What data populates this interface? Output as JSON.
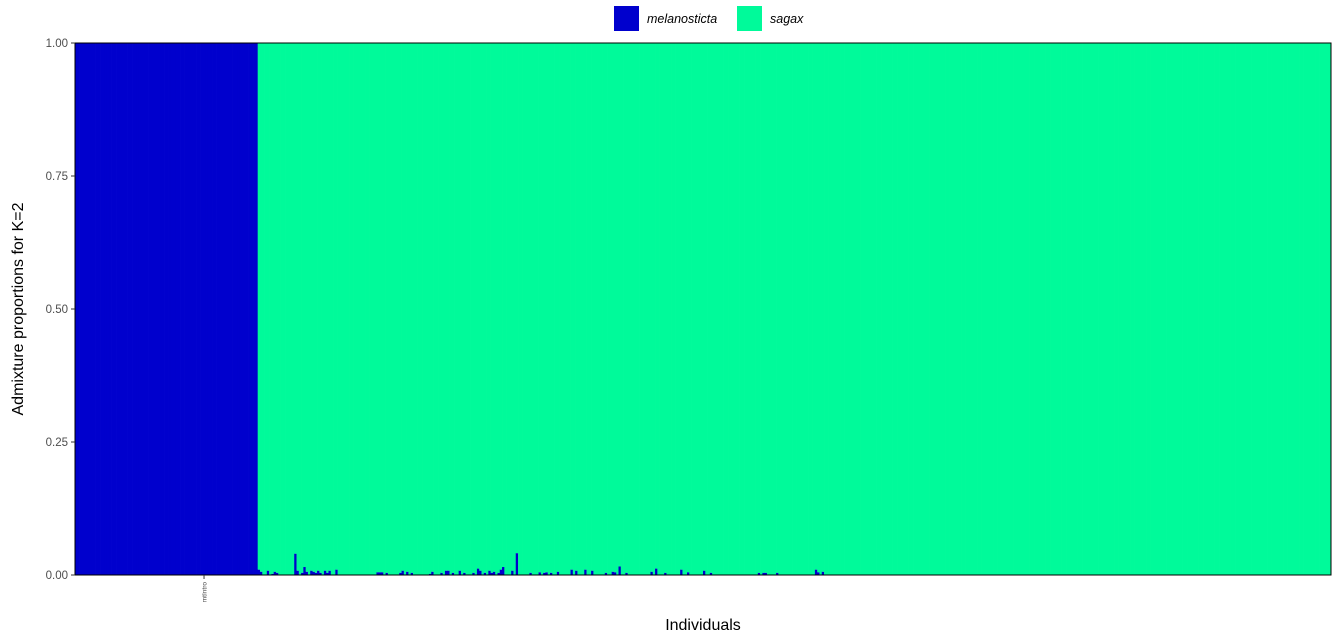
{
  "chart_data": {
    "type": "bar",
    "subtype": "stacked-proportion",
    "ylabel": "Admixture proportions for K=2",
    "xlabel": "Individuals",
    "ylim": [
      0,
      1
    ],
    "yticks": [
      "0.00",
      "0.25",
      "0.50",
      "0.75",
      "1.00"
    ],
    "x_tick_labels": [
      {
        "label": "mtIntro",
        "index": 56
      }
    ],
    "legend": {
      "position": "top",
      "entries": [
        {
          "name": "melanosticta",
          "color": "#0000CD"
        },
        {
          "name": "sagax",
          "color": "#00FA9A"
        }
      ]
    },
    "colors": {
      "melanosticta": "#0000CD",
      "sagax": "#00FA9A",
      "panel_border": "#000000"
    },
    "n_individuals": 550,
    "groups": [
      {
        "name": "melanosticta",
        "count": 80,
        "melanosticta_proportion": 1.0
      },
      {
        "name": "sagax",
        "count": 470,
        "melanosticta_proportion_default": 0.0
      }
    ],
    "melanosticta_in_sagax_group": [
      0.01,
      0.006,
      0.0,
      0.0,
      0.008,
      0.0,
      0.002,
      0.006,
      0.004,
      0.0,
      0.0,
      0.0,
      0.0,
      0.0,
      0.0,
      0.0,
      0.04,
      0.008,
      0.0,
      0.004,
      0.015,
      0.006,
      0.0,
      0.008,
      0.006,
      0.004,
      0.008,
      0.004,
      0.0,
      0.008,
      0.004,
      0.008,
      0.0,
      0.0,
      0.01,
      0.0,
      0.0,
      0.0,
      0.0,
      0.0,
      0.0,
      0.0,
      0.0,
      0.0,
      0.0,
      0.0,
      0.0,
      0.0,
      0.0,
      0.0,
      0.0,
      0.0,
      0.005,
      0.005,
      0.005,
      0.0,
      0.004,
      0.0,
      0.0,
      0.0,
      0.0,
      0.0,
      0.004,
      0.008,
      0.0,
      0.006,
      0.0,
      0.004,
      0.0,
      0.0,
      0.0,
      0.0,
      0.0,
      0.0,
      0.0,
      0.002,
      0.006,
      0.0,
      0.0,
      0.0,
      0.004,
      0.0,
      0.008,
      0.008,
      0.0,
      0.004,
      0.0,
      0.0,
      0.008,
      0.0,
      0.004,
      0.0,
      0.0,
      0.0,
      0.004,
      0.0,
      0.012,
      0.008,
      0.0,
      0.004,
      0.0,
      0.008,
      0.004,
      0.006,
      0.0,
      0.004,
      0.01,
      0.015,
      0.0,
      0.0,
      0.0,
      0.008,
      0.0,
      0.041,
      0.0,
      0.0,
      0.0,
      0.0,
      0.0,
      0.004,
      0.0,
      0.0,
      0.0,
      0.005,
      0.0,
      0.004,
      0.005,
      0.0,
      0.004,
      0.0,
      0.0,
      0.006,
      0.0,
      0.0,
      0.0,
      0.0,
      0.0,
      0.01,
      0.0,
      0.008,
      0.0,
      0.0,
      0.0,
      0.01,
      0.0,
      0.0,
      0.008,
      0.0,
      0.0,
      0.0,
      0.0,
      0.0,
      0.004,
      0.0,
      0.0,
      0.006,
      0.005,
      0.0,
      0.016,
      0.0,
      0.0,
      0.004,
      0.0,
      0.0,
      0.0,
      0.0,
      0.0,
      0.0,
      0.0,
      0.0,
      0.0,
      0.0,
      0.006,
      0.0,
      0.012,
      0.0,
      0.0,
      0.0,
      0.004,
      0.0,
      0.0,
      0.0,
      0.0,
      0.0,
      0.0,
      0.01,
      0.0,
      0.0,
      0.005,
      0.0,
      0.0,
      0.0,
      0.0,
      0.0,
      0.0,
      0.008,
      0.0,
      0.0,
      0.004,
      0.0,
      0.0,
      0.0,
      0.0,
      0.0,
      0.0,
      0.0,
      0.0,
      0.0,
      0.0,
      0.0,
      0.0,
      0.0,
      0.0,
      0.0,
      0.0,
      0.0,
      0.0,
      0.0,
      0.0,
      0.004,
      0.0,
      0.004,
      0.004,
      0.0,
      0.0,
      0.0,
      0.0,
      0.004,
      0.0,
      0.0,
      0.0,
      0.0,
      0.0,
      0.0,
      0.0,
      0.0,
      0.0,
      0.0,
      0.0,
      0.0,
      0.0,
      0.0,
      0.0,
      0.0,
      0.01,
      0.005,
      0.0,
      0.006,
      0.0,
      0.0,
      0.0,
      0.0,
      0.0,
      0.0,
      0.0,
      0.0,
      0.0,
      0.0,
      0.0,
      0.0,
      0.0,
      0.0,
      0.0,
      0.0,
      0.0,
      0.0,
      0.0,
      0.0,
      0.0,
      0.0,
      0.0,
      0.0,
      0.0,
      0.0,
      0.0,
      0.0,
      0.0,
      0.0,
      0.0,
      0.0,
      0.0,
      0.0,
      0.0,
      0.0,
      0.0,
      0.0,
      0.0,
      0.0,
      0.0,
      0.0,
      0.0,
      0.0,
      0.0,
      0.0,
      0.0,
      0.0,
      0.0,
      0.0,
      0.0,
      0.0,
      0.0,
      0.0,
      0.0,
      0.0,
      0.0,
      0.0,
      0.0,
      0.0,
      0.0,
      0.0,
      0.0,
      0.0,
      0.0,
      0.0,
      0.0,
      0.0,
      0.0,
      0.0,
      0.0,
      0.0,
      0.0,
      0.0,
      0.0,
      0.0,
      0.0,
      0.0,
      0.0,
      0.0,
      0.0,
      0.0,
      0.0,
      0.0,
      0.0,
      0.0,
      0.0,
      0.0,
      0.0,
      0.0,
      0.0,
      0.0,
      0.0,
      0.0,
      0.0,
      0.0,
      0.0,
      0.0,
      0.0,
      0.0,
      0.0,
      0.0,
      0.0,
      0.0,
      0.0,
      0.0,
      0.0,
      0.0,
      0.0,
      0.0,
      0.0,
      0.0,
      0.0,
      0.0,
      0.0,
      0.0,
      0.0,
      0.0,
      0.0,
      0.0,
      0.0,
      0.0,
      0.0,
      0.0,
      0.0,
      0.0,
      0.0,
      0.0,
      0.0,
      0.0,
      0.0,
      0.0,
      0.0,
      0.0,
      0.0,
      0.0,
      0.0,
      0.0,
      0.0,
      0.0,
      0.0,
      0.0,
      0.0,
      0.0,
      0.0,
      0.0,
      0.0,
      0.0,
      0.0,
      0.0,
      0.0,
      0.0,
      0.0,
      0.0,
      0.0,
      0.0,
      0.0,
      0.0,
      0.0,
      0.0,
      0.0,
      0.0,
      0.0,
      0.0,
      0.0,
      0.0,
      0.0,
      0.0,
      0.0,
      0.0,
      0.0,
      0.0,
      0.0,
      0.0,
      0.0,
      0.0,
      0.0,
      0.0,
      0.0,
      0.0,
      0.0,
      0.0,
      0.0,
      0.0,
      0.0,
      0.0,
      0.0,
      0.0,
      0.0,
      0.0,
      0.0,
      0.0,
      0.0,
      0.0,
      0.0,
      0.0,
      0.0,
      0.0,
      0.0,
      0.0,
      0.0,
      0.0,
      0.0,
      0.0,
      0.0,
      0.0,
      0.0,
      0.0,
      0.0,
      0.0,
      0.0,
      0.0,
      0.0,
      0.0,
      0.0,
      0.0,
      0.0,
      0.0,
      0.0,
      0.0,
      0.0,
      0.0,
      0.0,
      0.0,
      0.0,
      0.0,
      0.0,
      0.0,
      0.0,
      0.0,
      0.0,
      0.0,
      0.0,
      0.0,
      0.0,
      0.0,
      0.0,
      0.0,
      0.0,
      0.0,
      0.0,
      0.0,
      0.0,
      0.0,
      0.0,
      0.0,
      0.0,
      0.0,
      0.0,
      0.0,
      0.0,
      0.0,
      0.0,
      0.0,
      0.0,
      0.0,
      0.0,
      0.0,
      0.0,
      0.0,
      0.0,
      0.0,
      0.0,
      0.0,
      0.0
    ]
  }
}
